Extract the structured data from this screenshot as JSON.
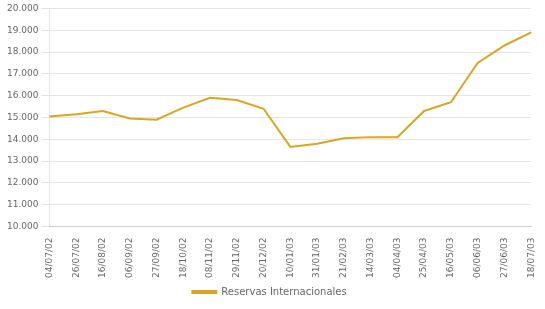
{
  "chart_data": {
    "type": "line",
    "categories": [
      "04/07/02",
      "26/07/02",
      "16/08/02",
      "06/09/02",
      "27/09/02",
      "18/10/02",
      "08/11/02",
      "29/11/02",
      "20/12/02",
      "10/01/03",
      "31/01/03",
      "21/02/03",
      "14/03/03",
      "04/04/03",
      "25/04/03",
      "16/05/03",
      "06/06/03",
      "27/06/03",
      "18/07/03"
    ],
    "series": [
      {
        "name": "Reservas Internacionales",
        "color": "#DAA520",
        "values": [
          15050,
          15150,
          15300,
          14950,
          14900,
          15450,
          15900,
          15800,
          15400,
          13650,
          13800,
          14050,
          14100,
          14100,
          15300,
          15700,
          17500,
          18300,
          18900
        ]
      }
    ],
    "ylim": [
      10000,
      20000
    ],
    "yticks": [
      {
        "value": 10000,
        "label": "10.000"
      },
      {
        "value": 11000,
        "label": "11.000"
      },
      {
        "value": 12000,
        "label": "12.000"
      },
      {
        "value": 13000,
        "label": "13.000"
      },
      {
        "value": 14000,
        "label": "14.000"
      },
      {
        "value": 15000,
        "label": "15.000"
      },
      {
        "value": 16000,
        "label": "16.000"
      },
      {
        "value": 17000,
        "label": "17.000"
      },
      {
        "value": 18000,
        "label": "18.000"
      },
      {
        "value": 19000,
        "label": "19.000"
      },
      {
        "value": 20000,
        "label": "20.000"
      }
    ],
    "grid": "y",
    "legend": "bottom"
  }
}
